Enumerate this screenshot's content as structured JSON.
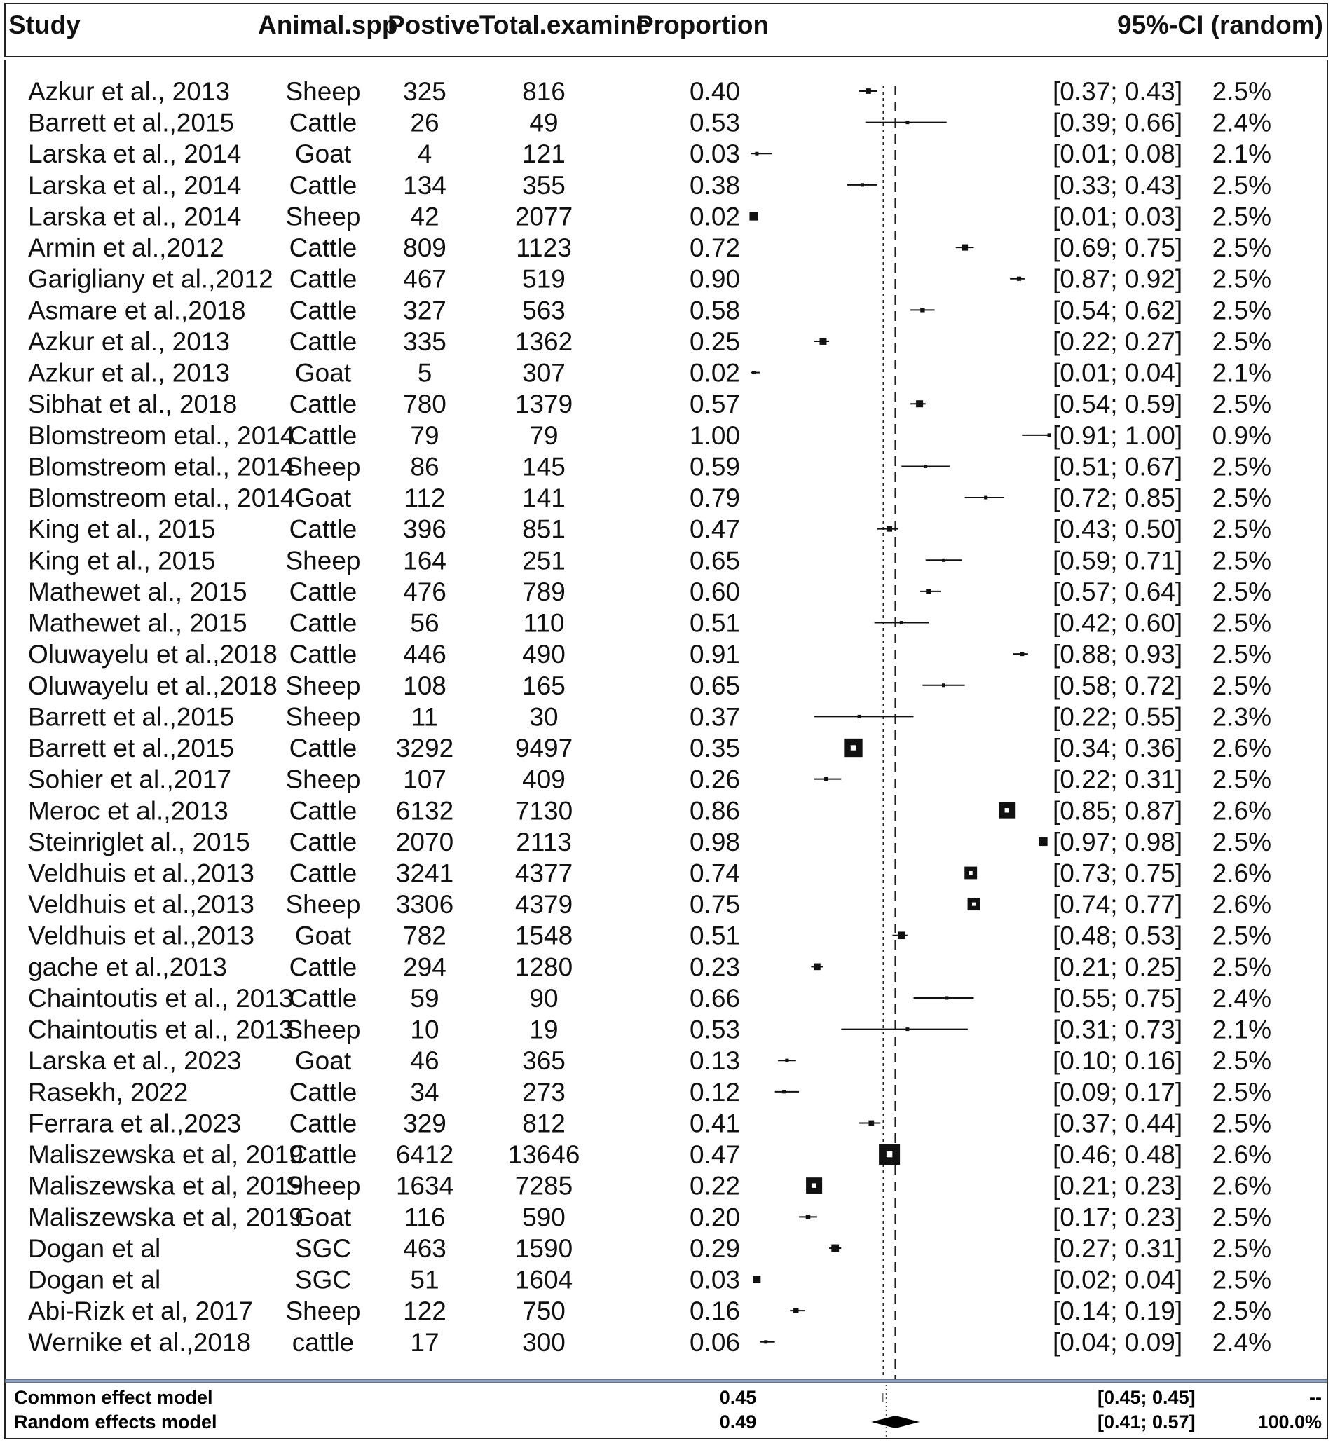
{
  "columns": {
    "study": "Study",
    "animal": "Animal.spp",
    "positive": "Postive",
    "total": "Total.examine",
    "proportion": "Proportion",
    "ci": "95%-CI (random)"
  },
  "chart_data": {
    "type": "forest",
    "x_scale": {
      "min": 0,
      "max": 1
    },
    "common_line": 0.45,
    "random_line": 0.49,
    "studies": [
      {
        "study": "Azkur et al., 2013",
        "animal": "Sheep",
        "positive": "325",
        "total": "816",
        "proportion": "0.40",
        "ci_text": "[0.37; 0.43]",
        "weight": "2.5%",
        "est": 0.4,
        "lo": 0.37,
        "hi": 0.43
      },
      {
        "study": "Barrett et al.,2015",
        "animal": "Cattle",
        "positive": "26",
        "total": "49",
        "proportion": "0.53",
        "ci_text": "[0.39; 0.66]",
        "weight": "2.4%",
        "est": 0.53,
        "lo": 0.39,
        "hi": 0.66
      },
      {
        "study": "Larska et al., 2014",
        "animal": "Goat",
        "positive": "4",
        "total": "121",
        "proportion": "0.03",
        "ci_text": "[0.01; 0.08]",
        "weight": "2.1%",
        "est": 0.03,
        "lo": 0.01,
        "hi": 0.08
      },
      {
        "study": "Larska et al., 2014",
        "animal": "Cattle",
        "positive": "134",
        "total": "355",
        "proportion": "0.38",
        "ci_text": "[0.33; 0.43]",
        "weight": "2.5%",
        "est": 0.38,
        "lo": 0.33,
        "hi": 0.43
      },
      {
        "study": "Larska et al., 2014",
        "animal": "Sheep",
        "positive": "42",
        "total": "2077",
        "proportion": "0.02",
        "ci_text": "[0.01; 0.03]",
        "weight": "2.5%",
        "est": 0.02,
        "lo": 0.01,
        "hi": 0.03
      },
      {
        "study": "Armin et al.,2012",
        "animal": "Cattle",
        "positive": "809",
        "total": "1123",
        "proportion": "0.72",
        "ci_text": "[0.69; 0.75]",
        "weight": "2.5%",
        "est": 0.72,
        "lo": 0.69,
        "hi": 0.75
      },
      {
        "study": "Garigliany et al.,2012",
        "animal": "Cattle",
        "positive": "467",
        "total": "519",
        "proportion": "0.90",
        "ci_text": "[0.87; 0.92]",
        "weight": "2.5%",
        "est": 0.9,
        "lo": 0.87,
        "hi": 0.92
      },
      {
        "study": "Asmare et al.,2018",
        "animal": "Cattle",
        "positive": "327",
        "total": "563",
        "proportion": "0.58",
        "ci_text": "[0.54; 0.62]",
        "weight": "2.5%",
        "est": 0.58,
        "lo": 0.54,
        "hi": 0.62
      },
      {
        "study": "Azkur et al., 2013",
        "animal": "Cattle",
        "positive": "335",
        "total": "1362",
        "proportion": "0.25",
        "ci_text": "[0.22; 0.27]",
        "weight": "2.5%",
        "est": 0.25,
        "lo": 0.22,
        "hi": 0.27
      },
      {
        "study": "Azkur et al., 2013",
        "animal": "Goat",
        "positive": "5",
        "total": "307",
        "proportion": "0.02",
        "ci_text": "[0.01; 0.04]",
        "weight": "2.1%",
        "est": 0.02,
        "lo": 0.01,
        "hi": 0.04
      },
      {
        "study": "Sibhat et al., 2018",
        "animal": "Cattle",
        "positive": "780",
        "total": "1379",
        "proportion": "0.57",
        "ci_text": "[0.54; 0.59]",
        "weight": "2.5%",
        "est": 0.57,
        "lo": 0.54,
        "hi": 0.59
      },
      {
        "study": "Blomstreom etal., 2014",
        "animal": "Cattle",
        "positive": "79",
        "total": "79",
        "proportion": "1.00",
        "ci_text": "[0.91; 1.00]",
        "weight": "0.9%",
        "est": 1.0,
        "lo": 0.91,
        "hi": 1.0
      },
      {
        "study": "Blomstreom etal., 2014",
        "animal": "Sheep",
        "positive": "86",
        "total": "145",
        "proportion": "0.59",
        "ci_text": "[0.51; 0.67]",
        "weight": "2.5%",
        "est": 0.59,
        "lo": 0.51,
        "hi": 0.67
      },
      {
        "study": "Blomstreom etal., 2014",
        "animal": "Goat",
        "positive": "112",
        "total": "141",
        "proportion": "0.79",
        "ci_text": "[0.72; 0.85]",
        "weight": "2.5%",
        "est": 0.79,
        "lo": 0.72,
        "hi": 0.85
      },
      {
        "study": "King et al., 2015",
        "animal": "Cattle",
        "positive": "396",
        "total": "851",
        "proportion": "0.47",
        "ci_text": "[0.43; 0.50]",
        "weight": "2.5%",
        "est": 0.47,
        "lo": 0.43,
        "hi": 0.5
      },
      {
        "study": "King et al., 2015",
        "animal": "Sheep",
        "positive": "164",
        "total": "251",
        "proportion": "0.65",
        "ci_text": "[0.59; 0.71]",
        "weight": "2.5%",
        "est": 0.65,
        "lo": 0.59,
        "hi": 0.71
      },
      {
        "study": "Mathewet al., 2015",
        "animal": "Cattle",
        "positive": "476",
        "total": "789",
        "proportion": "0.60",
        "ci_text": "[0.57; 0.64]",
        "weight": "2.5%",
        "est": 0.6,
        "lo": 0.57,
        "hi": 0.64
      },
      {
        "study": "Mathewet al., 2015",
        "animal": "Cattle",
        "positive": "56",
        "total": "110",
        "proportion": "0.51",
        "ci_text": "[0.42; 0.60]",
        "weight": "2.5%",
        "est": 0.51,
        "lo": 0.42,
        "hi": 0.6
      },
      {
        "study": "Oluwayelu et al.,2018",
        "animal": "Cattle",
        "positive": "446",
        "total": "490",
        "proportion": "0.91",
        "ci_text": "[0.88; 0.93]",
        "weight": "2.5%",
        "est": 0.91,
        "lo": 0.88,
        "hi": 0.93
      },
      {
        "study": "Oluwayelu et al.,2018",
        "animal": "Sheep",
        "positive": "108",
        "total": "165",
        "proportion": "0.65",
        "ci_text": "[0.58; 0.72]",
        "weight": "2.5%",
        "est": 0.65,
        "lo": 0.58,
        "hi": 0.72
      },
      {
        "study": "Barrett et al.,2015",
        "animal": "Sheep",
        "positive": "11",
        "total": "30",
        "proportion": "0.37",
        "ci_text": "[0.22; 0.55]",
        "weight": "2.3%",
        "est": 0.37,
        "lo": 0.22,
        "hi": 0.55
      },
      {
        "study": "Barrett et al.,2015",
        "animal": "Cattle",
        "positive": "3292",
        "total": "9497",
        "proportion": "0.35",
        "ci_text": "[0.34; 0.36]",
        "weight": "2.6%",
        "est": 0.35,
        "lo": 0.34,
        "hi": 0.36
      },
      {
        "study": "Sohier et al.,2017",
        "animal": "Sheep",
        "positive": "107",
        "total": "409",
        "proportion": "0.26",
        "ci_text": "[0.22; 0.31]",
        "weight": "2.5%",
        "est": 0.26,
        "lo": 0.22,
        "hi": 0.31
      },
      {
        "study": "Meroc et al.,2013",
        "animal": "Cattle",
        "positive": "6132",
        "total": "7130",
        "proportion": "0.86",
        "ci_text": "[0.85; 0.87]",
        "weight": "2.6%",
        "est": 0.86,
        "lo": 0.85,
        "hi": 0.87
      },
      {
        "study": "Steinriglet al., 2015",
        "animal": "Cattle",
        "positive": "2070",
        "total": "2113",
        "proportion": "0.98",
        "ci_text": "[0.97; 0.98]",
        "weight": "2.5%",
        "est": 0.98,
        "lo": 0.97,
        "hi": 0.98
      },
      {
        "study": "Veldhuis et al.,2013",
        "animal": "Cattle",
        "positive": "3241",
        "total": "4377",
        "proportion": "0.74",
        "ci_text": "[0.73; 0.75]",
        "weight": "2.6%",
        "est": 0.74,
        "lo": 0.73,
        "hi": 0.75
      },
      {
        "study": "Veldhuis et al.,2013",
        "animal": "Sheep",
        "positive": "3306",
        "total": "4379",
        "proportion": "0.75",
        "ci_text": "[0.74; 0.77]",
        "weight": "2.6%",
        "est": 0.75,
        "lo": 0.74,
        "hi": 0.77
      },
      {
        "study": "Veldhuis et al.,2013",
        "animal": "Goat",
        "positive": "782",
        "total": "1548",
        "proportion": "0.51",
        "ci_text": "[0.48; 0.53]",
        "weight": "2.5%",
        "est": 0.51,
        "lo": 0.48,
        "hi": 0.53
      },
      {
        "study": "gache et al.,2013",
        "animal": "Cattle",
        "positive": "294",
        "total": "1280",
        "proportion": "0.23",
        "ci_text": "[0.21; 0.25]",
        "weight": "2.5%",
        "est": 0.23,
        "lo": 0.21,
        "hi": 0.25
      },
      {
        "study": "Chaintoutis et al., 2013",
        "animal": "Cattle",
        "positive": "59",
        "total": "90",
        "proportion": "0.66",
        "ci_text": "[0.55; 0.75]",
        "weight": "2.4%",
        "est": 0.66,
        "lo": 0.55,
        "hi": 0.75
      },
      {
        "study": "Chaintoutis et al., 2013",
        "animal": "Sheep",
        "positive": "10",
        "total": "19",
        "proportion": "0.53",
        "ci_text": "[0.31; 0.73]",
        "weight": "2.1%",
        "est": 0.53,
        "lo": 0.31,
        "hi": 0.73
      },
      {
        "study": "Larska et al., 2023",
        "animal": "Goat",
        "positive": "46",
        "total": "365",
        "proportion": "0.13",
        "ci_text": "[0.10; 0.16]",
        "weight": "2.5%",
        "est": 0.13,
        "lo": 0.1,
        "hi": 0.16
      },
      {
        "study": "Rasekh, 2022",
        "animal": "Cattle",
        "positive": "34",
        "total": "273",
        "proportion": "0.12",
        "ci_text": "[0.09; 0.17]",
        "weight": "2.5%",
        "est": 0.12,
        "lo": 0.09,
        "hi": 0.17
      },
      {
        "study": "Ferrara et al.,2023",
        "animal": "Cattle",
        "positive": "329",
        "total": "812",
        "proportion": "0.41",
        "ci_text": "[0.37; 0.44]",
        "weight": "2.5%",
        "est": 0.41,
        "lo": 0.37,
        "hi": 0.44
      },
      {
        "study": "Maliszewska et al, 2019",
        "animal": "Cattle",
        "positive": "6412",
        "total": "13646",
        "proportion": "0.47",
        "ci_text": "[0.46; 0.48]",
        "weight": "2.6%",
        "est": 0.47,
        "lo": 0.46,
        "hi": 0.48
      },
      {
        "study": "Maliszewska et al, 2019",
        "animal": "Sheep",
        "positive": "1634",
        "total": "7285",
        "proportion": "0.22",
        "ci_text": "[0.21; 0.23]",
        "weight": "2.6%",
        "est": 0.22,
        "lo": 0.21,
        "hi": 0.23
      },
      {
        "study": "Maliszewska et al, 2019",
        "animal": "Goat",
        "positive": "116",
        "total": "590",
        "proportion": "0.20",
        "ci_text": "[0.17; 0.23]",
        "weight": "2.5%",
        "est": 0.2,
        "lo": 0.17,
        "hi": 0.23
      },
      {
        "study": "Dogan  et al",
        "animal": "SGC",
        "positive": "463",
        "total": "1590",
        "proportion": "0.29",
        "ci_text": "[0.27; 0.31]",
        "weight": "2.5%",
        "est": 0.29,
        "lo": 0.27,
        "hi": 0.31
      },
      {
        "study": "Dogan  et al",
        "animal": "SGC",
        "positive": "51",
        "total": "1604",
        "proportion": "0.03",
        "ci_text": "[0.02; 0.04]",
        "weight": "2.5%",
        "est": 0.03,
        "lo": 0.02,
        "hi": 0.04
      },
      {
        "study": "Abi-Rizk et al, 2017",
        "animal": "Sheep",
        "positive": "122",
        "total": "750",
        "proportion": "0.16",
        "ci_text": "[0.14; 0.19]",
        "weight": "2.5%",
        "est": 0.16,
        "lo": 0.14,
        "hi": 0.19
      },
      {
        "study": "Wernike et al.,2018",
        "animal": "cattle",
        "positive": "17",
        "total": "300",
        "proportion": "0.06",
        "ci_text": "[0.04; 0.09]",
        "weight": "2.4%",
        "est": 0.06,
        "lo": 0.04,
        "hi": 0.09
      }
    ],
    "summary": [
      {
        "label": "Common effect model",
        "proportion": "0.45",
        "ci_text": "[0.45; 0.45]",
        "weight": "--",
        "est": 0.45,
        "lo": 0.45,
        "hi": 0.45
      },
      {
        "label": "Random effects model",
        "proportion": "0.49",
        "ci_text": "[0.41; 0.57]",
        "weight": "100.0%",
        "est": 0.49,
        "lo": 0.41,
        "hi": 0.57
      }
    ]
  }
}
